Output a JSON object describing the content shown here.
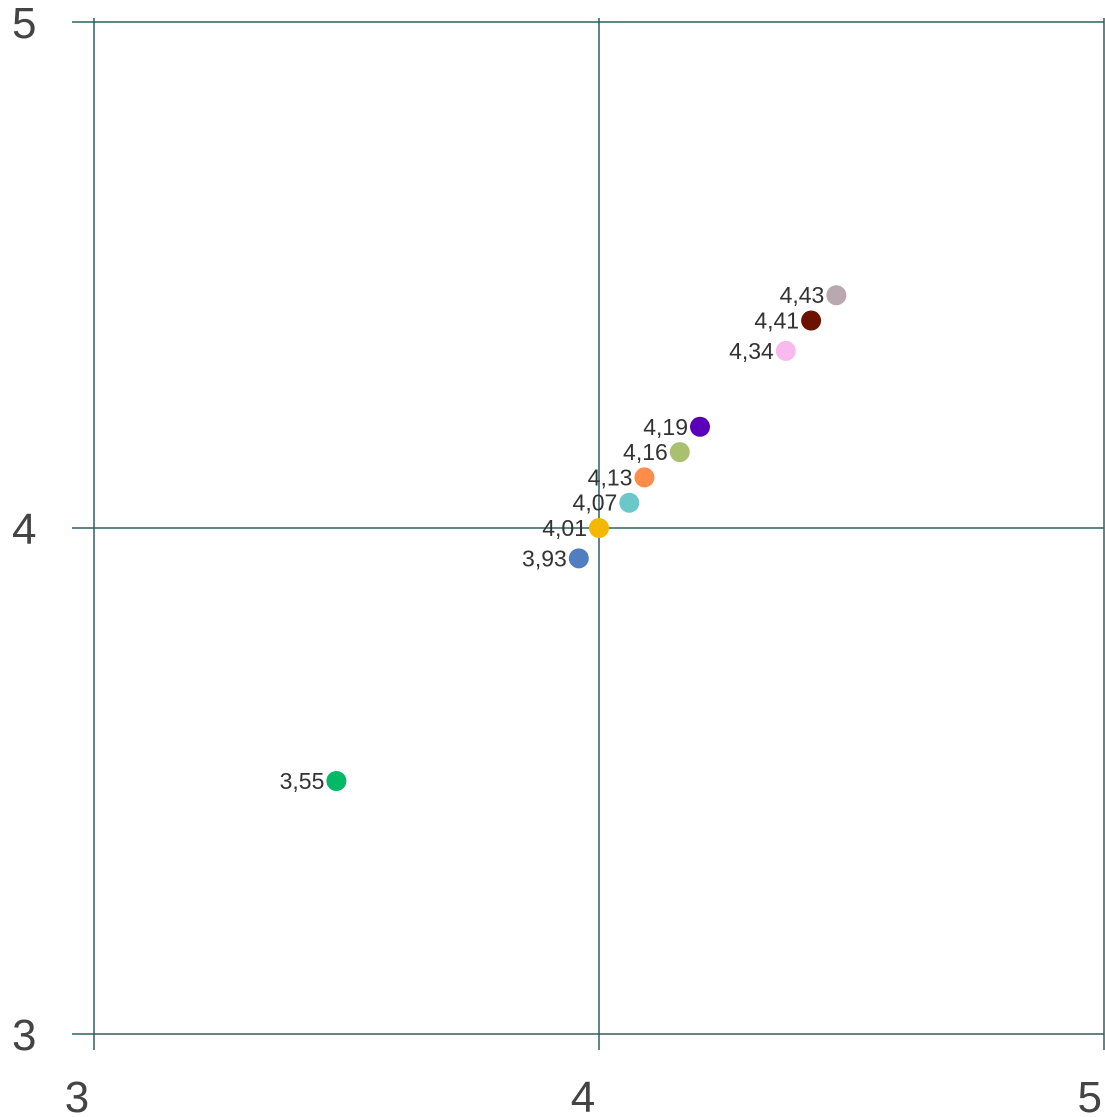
{
  "chart_data": {
    "type": "scatter",
    "title": "",
    "xlabel": "",
    "ylabel": "",
    "xlim": [
      3,
      5
    ],
    "ylim": [
      3,
      5
    ],
    "grid": true,
    "x_ticks": [
      "3",
      "4",
      "5"
    ],
    "y_ticks": [
      "3",
      "4",
      "5"
    ],
    "points": [
      {
        "x": 3.48,
        "y": 3.5,
        "label": "3,55",
        "color": "#00b865"
      },
      {
        "x": 3.96,
        "y": 3.94,
        "label": "3,93",
        "color": "#4f7fc0"
      },
      {
        "x": 4.0,
        "y": 4.0,
        "label": "4,01",
        "color": "#f5b800"
      },
      {
        "x": 4.06,
        "y": 4.05,
        "label": "4,07",
        "color": "#6cc8c8"
      },
      {
        "x": 4.09,
        "y": 4.1,
        "label": "4,13",
        "color": "#ff8c4a"
      },
      {
        "x": 4.16,
        "y": 4.15,
        "label": "4,16",
        "color": "#a8c070"
      },
      {
        "x": 4.2,
        "y": 4.2,
        "label": "4,19",
        "color": "#5a00b8"
      },
      {
        "x": 4.37,
        "y": 4.35,
        "label": "4,34",
        "color": "#f9b8ee"
      },
      {
        "x": 4.42,
        "y": 4.41,
        "label": "4,41",
        "color": "#6e1200"
      },
      {
        "x": 4.47,
        "y": 4.46,
        "label": "4,43",
        "color": "#b8a8b0"
      }
    ]
  }
}
